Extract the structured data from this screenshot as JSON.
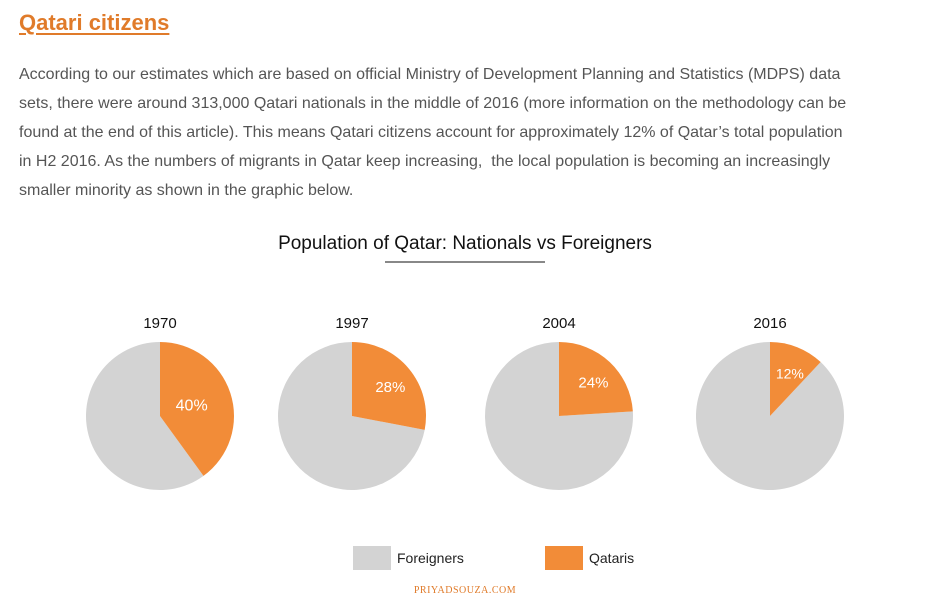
{
  "section": {
    "heading": "Qatari citizens",
    "paragraph_lines": [
      "According to our estimates which are based on official Ministry of Development Planning and Statistics (MDPS) data",
      "sets, there were around 313,000 Qatari nationals in the middle of 2016 (more information on the methodology can be",
      "found at the end of this article). This means Qatari citizens account for approximately 12% of Qatar’s total population",
      "in H2 2016. As the numbers of migrants in Qatar keep increasing,  the local population is becoming an increasingly",
      "smaller minority as shown in the graphic below."
    ]
  },
  "chart_data": {
    "type": "pie",
    "title": "Population of Qatar: Nationals vs Foreigners",
    "legend": {
      "placement": "bottom",
      "items": [
        {
          "name": "Foreigners",
          "color": "#d3d3d3"
        },
        {
          "name": "Qataris",
          "color": "#f28c38"
        }
      ]
    },
    "pies": [
      {
        "year": "1970",
        "qataris_pct": 40,
        "label": "40%"
      },
      {
        "year": "1997",
        "qataris_pct": 28,
        "label": "28%"
      },
      {
        "year": "2004",
        "qataris_pct": 24,
        "label": "24%"
      },
      {
        "year": "2016",
        "qataris_pct": 12,
        "label": "12%"
      }
    ]
  },
  "credit": "PRIYADSOUZA.COM"
}
